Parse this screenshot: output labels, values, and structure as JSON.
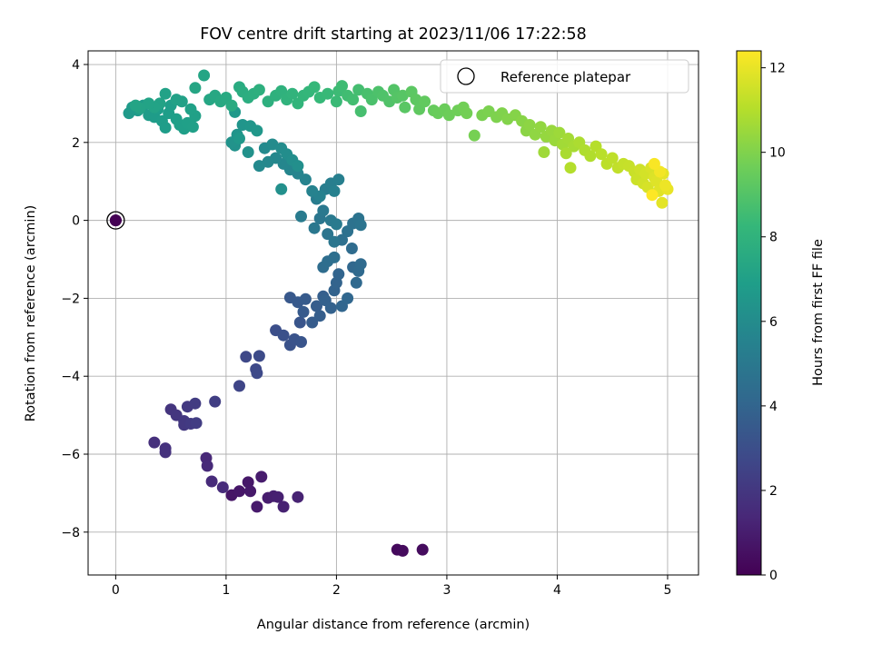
{
  "chart_data": {
    "type": "scatter",
    "title": "FOV centre drift starting at 2023/11/06 17:22:58",
    "xlabel": "Angular distance from reference (arcmin)",
    "ylabel": "Rotation from reference (arcmin)",
    "xlim": [
      -0.25,
      5.28
    ],
    "ylim": [
      -9.1,
      4.35
    ],
    "x_ticks": [
      0,
      1,
      2,
      3,
      4,
      5
    ],
    "y_ticks": [
      -8,
      -6,
      -4,
      -2,
      0,
      2,
      4
    ],
    "grid": true,
    "legend": {
      "placement": "top-right",
      "entries": [
        "Reference platepar"
      ]
    },
    "reference_point": {
      "x": 0,
      "y": 0,
      "hours": 0
    },
    "colorbar": {
      "label": "Hours from first FF file",
      "range": [
        0,
        12.4
      ],
      "ticks": [
        0,
        2,
        4,
        6,
        8,
        10,
        12
      ],
      "colormap": [
        "#440154",
        "#482878",
        "#3e4989",
        "#31688e",
        "#26828e",
        "#1f9e89",
        "#35b779",
        "#6ece58",
        "#b5de2b",
        "#fde725"
      ]
    },
    "points": [
      [
        0,
        0,
        0.0
      ],
      [
        2.55,
        -8.45,
        0.3
      ],
      [
        2.6,
        -8.48,
        0.35
      ],
      [
        2.78,
        -8.45,
        0.4
      ],
      [
        1.05,
        -7.05,
        0.7
      ],
      [
        1.12,
        -6.95,
        0.75
      ],
      [
        1.2,
        -6.72,
        0.8
      ],
      [
        1.22,
        -6.95,
        0.85
      ],
      [
        1.28,
        -7.35,
        0.9
      ],
      [
        1.32,
        -6.58,
        0.95
      ],
      [
        1.38,
        -7.12,
        1.0
      ],
      [
        1.43,
        -7.08,
        1.05
      ],
      [
        1.47,
        -7.1,
        1.1
      ],
      [
        1.52,
        -7.35,
        1.15
      ],
      [
        1.65,
        -7.1,
        1.2
      ],
      [
        0.82,
        -6.1,
        1.4
      ],
      [
        0.83,
        -6.3,
        1.45
      ],
      [
        0.87,
        -6.7,
        1.5
      ],
      [
        0.97,
        -6.85,
        1.55
      ],
      [
        0.35,
        -5.7,
        1.7
      ],
      [
        0.45,
        -5.85,
        1.75
      ],
      [
        0.45,
        -5.95,
        1.8
      ],
      [
        0.5,
        -4.85,
        1.9
      ],
      [
        0.55,
        -5.0,
        1.95
      ],
      [
        0.62,
        -5.15,
        2.0
      ],
      [
        0.62,
        -5.25,
        2.05
      ],
      [
        0.65,
        -4.78,
        2.1
      ],
      [
        0.68,
        -5.22,
        2.15
      ],
      [
        0.72,
        -4.7,
        2.2
      ],
      [
        0.73,
        -5.2,
        2.25
      ],
      [
        0.9,
        -4.65,
        2.3
      ],
      [
        1.12,
        -4.25,
        2.6
      ],
      [
        1.18,
        -3.5,
        2.7
      ],
      [
        1.27,
        -3.82,
        2.75
      ],
      [
        1.28,
        -3.92,
        2.8
      ],
      [
        1.3,
        -3.48,
        2.85
      ],
      [
        1.45,
        -2.82,
        3.0
      ],
      [
        1.52,
        -2.95,
        3.1
      ],
      [
        1.58,
        -3.2,
        3.15
      ],
      [
        1.62,
        -3.05,
        3.2
      ],
      [
        1.68,
        -3.12,
        3.25
      ],
      [
        1.67,
        -2.62,
        3.3
      ],
      [
        1.58,
        -1.98,
        3.4
      ],
      [
        1.65,
        -2.1,
        3.45
      ],
      [
        1.7,
        -2.35,
        3.5
      ],
      [
        1.72,
        -2.02,
        3.55
      ],
      [
        1.78,
        -2.62,
        3.6
      ],
      [
        1.82,
        -2.2,
        3.65
      ],
      [
        1.85,
        -2.45,
        3.7
      ],
      [
        1.88,
        -1.95,
        3.75
      ],
      [
        1.9,
        -2.05,
        3.8
      ],
      [
        1.95,
        -2.25,
        3.85
      ],
      [
        1.98,
        -1.8,
        3.9
      ],
      [
        2.0,
        -1.6,
        3.95
      ],
      [
        2.02,
        -1.38,
        4.0
      ],
      [
        2.05,
        -2.2,
        4.05
      ],
      [
        2.1,
        -2.0,
        4.1
      ],
      [
        2.15,
        -1.2,
        4.15
      ],
      [
        2.18,
        -1.6,
        4.2
      ],
      [
        2.2,
        -1.3,
        4.25
      ],
      [
        2.22,
        -1.12,
        4.3
      ],
      [
        2.14,
        -0.72,
        4.35
      ],
      [
        1.88,
        -1.2,
        4.4
      ],
      [
        1.92,
        -1.05,
        4.45
      ],
      [
        1.98,
        -0.95,
        4.5
      ],
      [
        2.05,
        -0.5,
        4.55
      ],
      [
        2.1,
        -0.28,
        4.6
      ],
      [
        2.15,
        -0.08,
        4.65
      ],
      [
        2.2,
        0.05,
        4.7
      ],
      [
        2.22,
        -0.12,
        4.75
      ],
      [
        1.92,
        -0.35,
        4.8
      ],
      [
        1.98,
        -0.55,
        4.85
      ],
      [
        1.85,
        0.05,
        4.9
      ],
      [
        1.8,
        -0.2,
        4.95
      ],
      [
        1.88,
        0.25,
        5.0
      ],
      [
        1.95,
        0.0,
        5.05
      ],
      [
        2.0,
        -0.1,
        5.1
      ],
      [
        1.68,
        0.1,
        5.15
      ],
      [
        1.82,
        0.55,
        5.2
      ],
      [
        1.9,
        0.8,
        5.25
      ],
      [
        1.95,
        0.95,
        5.3
      ],
      [
        2.02,
        1.05,
        5.35
      ],
      [
        1.98,
        0.75,
        5.4
      ],
      [
        1.85,
        0.62,
        5.45
      ],
      [
        1.78,
        0.75,
        5.5
      ],
      [
        1.72,
        1.05,
        5.55
      ],
      [
        1.65,
        1.2,
        5.6
      ],
      [
        1.58,
        1.3,
        5.65
      ],
      [
        1.52,
        1.45,
        5.7
      ],
      [
        1.45,
        1.6,
        5.75
      ],
      [
        1.38,
        1.5,
        5.8
      ],
      [
        1.3,
        1.4,
        5.85
      ],
      [
        1.35,
        1.85,
        5.9
      ],
      [
        1.42,
        1.95,
        5.95
      ],
      [
        1.5,
        1.85,
        6.0
      ],
      [
        1.55,
        1.7,
        6.05
      ],
      [
        1.6,
        1.55,
        6.1
      ],
      [
        1.65,
        1.4,
        6.15
      ],
      [
        1.5,
        0.8,
        6.2
      ],
      [
        1.2,
        1.75,
        6.25
      ],
      [
        1.08,
        1.92,
        6.3
      ],
      [
        1.05,
        2.0,
        6.35
      ],
      [
        1.1,
        2.2,
        6.4
      ],
      [
        1.15,
        2.45,
        6.45
      ],
      [
        1.22,
        2.42,
        6.5
      ],
      [
        1.28,
        2.3,
        6.55
      ],
      [
        1.12,
        2.1,
        6.6
      ],
      [
        1.08,
        2.78,
        6.65
      ],
      [
        0.12,
        2.75,
        6.7
      ],
      [
        0.15,
        2.9,
        6.72
      ],
      [
        0.2,
        2.82,
        6.74
      ],
      [
        0.25,
        2.95,
        6.76
      ],
      [
        0.3,
        2.7,
        6.78
      ],
      [
        0.35,
        2.65,
        6.8
      ],
      [
        0.38,
        2.85,
        6.82
      ],
      [
        0.42,
        2.55,
        6.84
      ],
      [
        0.45,
        2.38,
        6.86
      ],
      [
        0.48,
        2.75,
        6.88
      ],
      [
        0.5,
        2.95,
        6.9
      ],
      [
        0.55,
        2.6,
        6.92
      ],
      [
        0.58,
        2.45,
        6.94
      ],
      [
        0.62,
        2.35,
        6.96
      ],
      [
        0.65,
        2.5,
        6.98
      ],
      [
        0.7,
        2.4,
        7.0
      ],
      [
        0.72,
        2.68,
        7.02
      ],
      [
        0.68,
        2.85,
        7.04
      ],
      [
        0.6,
        3.05,
        7.06
      ],
      [
        0.55,
        3.1,
        7.08
      ],
      [
        0.45,
        3.25,
        7.1
      ],
      [
        0.4,
        3.0,
        7.12
      ],
      [
        0.35,
        2.9,
        7.14
      ],
      [
        0.3,
        3.0,
        7.16
      ],
      [
        0.22,
        2.88,
        7.18
      ],
      [
        0.18,
        2.95,
        7.2
      ],
      [
        0.8,
        3.72,
        7.25
      ],
      [
        0.72,
        3.4,
        7.3
      ],
      [
        0.85,
        3.1,
        7.35
      ],
      [
        0.9,
        3.2,
        7.4
      ],
      [
        0.95,
        3.05,
        7.45
      ],
      [
        1.0,
        3.15,
        7.5
      ],
      [
        1.05,
        2.95,
        7.55
      ],
      [
        1.12,
        3.42,
        7.6
      ],
      [
        1.15,
        3.3,
        7.65
      ],
      [
        1.2,
        3.15,
        7.7
      ],
      [
        1.25,
        3.25,
        7.75
      ],
      [
        1.3,
        3.35,
        7.8
      ],
      [
        1.38,
        3.05,
        7.85
      ],
      [
        1.45,
        3.2,
        7.9
      ],
      [
        1.5,
        3.32,
        7.95
      ],
      [
        1.55,
        3.1,
        8.0
      ],
      [
        1.6,
        3.25,
        8.05
      ],
      [
        1.65,
        3.0,
        8.1
      ],
      [
        1.7,
        3.2,
        8.15
      ],
      [
        1.75,
        3.3,
        8.2
      ],
      [
        1.8,
        3.42,
        8.25
      ],
      [
        1.85,
        3.15,
        8.3
      ],
      [
        1.92,
        3.25,
        8.35
      ],
      [
        2.0,
        3.05,
        8.4
      ],
      [
        2.02,
        3.32,
        8.45
      ],
      [
        2.05,
        3.45,
        8.5
      ],
      [
        2.1,
        3.2,
        8.55
      ],
      [
        2.15,
        3.1,
        8.6
      ],
      [
        2.2,
        3.35,
        8.65
      ],
      [
        2.22,
        2.8,
        8.7
      ],
      [
        2.28,
        3.25,
        8.75
      ],
      [
        2.32,
        3.1,
        8.8
      ],
      [
        2.38,
        3.3,
        8.85
      ],
      [
        2.42,
        3.2,
        8.9
      ],
      [
        2.48,
        3.05,
        8.95
      ],
      [
        2.52,
        3.35,
        9.0
      ],
      [
        2.55,
        3.15,
        9.05
      ],
      [
        2.6,
        3.2,
        9.1
      ],
      [
        2.62,
        2.9,
        9.15
      ],
      [
        2.68,
        3.3,
        9.2
      ],
      [
        2.72,
        3.1,
        9.25
      ],
      [
        2.75,
        2.85,
        9.3
      ],
      [
        2.8,
        3.05,
        9.35
      ],
      [
        2.88,
        2.82,
        9.45
      ],
      [
        2.92,
        2.75,
        9.5
      ],
      [
        2.98,
        2.85,
        9.55
      ],
      [
        3.02,
        2.7,
        9.6
      ],
      [
        3.1,
        2.82,
        9.65
      ],
      [
        3.15,
        2.9,
        9.7
      ],
      [
        3.18,
        2.75,
        9.75
      ],
      [
        3.25,
        2.18,
        9.8
      ],
      [
        3.32,
        2.7,
        9.85
      ],
      [
        3.38,
        2.8,
        9.9
      ],
      [
        3.45,
        2.65,
        9.95
      ],
      [
        3.5,
        2.75,
        10.0
      ],
      [
        3.55,
        2.6,
        10.05
      ],
      [
        3.62,
        2.7,
        10.1
      ],
      [
        3.68,
        2.55,
        10.15
      ],
      [
        3.72,
        2.3,
        10.2
      ],
      [
        3.75,
        2.45,
        10.25
      ],
      [
        3.8,
        2.2,
        10.3
      ],
      [
        3.85,
        2.4,
        10.35
      ],
      [
        3.9,
        2.15,
        10.4
      ],
      [
        3.95,
        2.3,
        10.45
      ],
      [
        3.98,
        2.05,
        10.5
      ],
      [
        4.02,
        2.25,
        10.55
      ],
      [
        3.88,
        1.75,
        10.6
      ],
      [
        4.05,
        1.95,
        10.65
      ],
      [
        4.1,
        2.1,
        10.7
      ],
      [
        4.15,
        1.9,
        10.75
      ],
      [
        4.08,
        1.72,
        10.8
      ],
      [
        4.2,
        2.0,
        10.85
      ],
      [
        4.25,
        1.8,
        10.9
      ],
      [
        4.3,
        1.65,
        10.95
      ],
      [
        4.12,
        1.35,
        11.0
      ],
      [
        4.35,
        1.9,
        11.05
      ],
      [
        4.4,
        1.7,
        11.1
      ],
      [
        4.45,
        1.45,
        11.15
      ],
      [
        4.5,
        1.6,
        11.2
      ],
      [
        4.55,
        1.35,
        11.25
      ],
      [
        4.6,
        1.45,
        11.3
      ],
      [
        4.65,
        1.4,
        11.35
      ],
      [
        4.7,
        1.25,
        11.4
      ],
      [
        4.72,
        1.05,
        11.45
      ],
      [
        4.75,
        1.3,
        11.5
      ],
      [
        4.78,
        0.95,
        11.55
      ],
      [
        4.8,
        1.2,
        11.6
      ],
      [
        4.82,
        0.85,
        11.65
      ],
      [
        4.85,
        1.35,
        11.7
      ],
      [
        4.88,
        1.1,
        11.75
      ],
      [
        4.9,
        1.0,
        11.8
      ],
      [
        4.92,
        0.75,
        11.85
      ],
      [
        4.95,
        0.45,
        11.9
      ],
      [
        4.96,
        1.2,
        11.95
      ],
      [
        5.0,
        0.8,
        12.0
      ],
      [
        4.98,
        0.9,
        12.1
      ],
      [
        4.93,
        1.25,
        12.2
      ],
      [
        4.88,
        1.45,
        12.3
      ],
      [
        4.86,
        0.65,
        12.4
      ]
    ]
  }
}
